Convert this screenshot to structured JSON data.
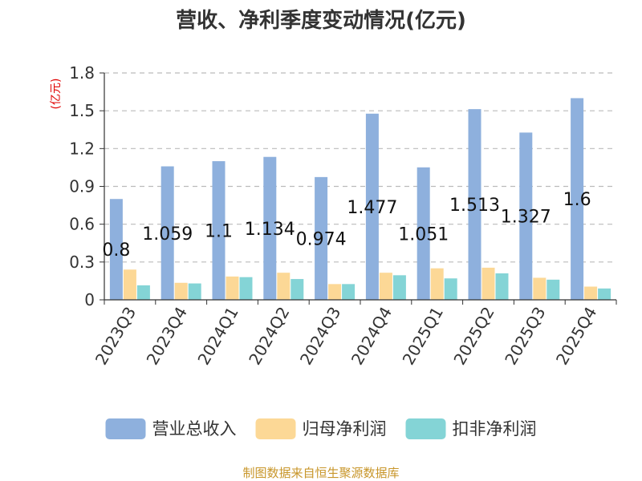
{
  "chart_data": {
    "type": "bar",
    "title": "营收、净利季度变动情况(亿元)",
    "ylabel": "(亿元)",
    "ylim": [
      0,
      1.8
    ],
    "yticks": [
      0,
      0.3,
      0.6,
      0.9,
      1.2,
      1.5,
      1.8
    ],
    "ytick_labels": [
      "0",
      "0.3",
      "0.6",
      "0.9",
      "1.2",
      "1.5",
      "1.8"
    ],
    "grid": true,
    "legend_position": "bottom",
    "categories": [
      "2023Q3",
      "2023Q4",
      "2024Q1",
      "2024Q2",
      "2024Q3",
      "2024Q4",
      "2025Q1",
      "2025Q2",
      "2025Q3",
      "2025Q4"
    ],
    "series": [
      {
        "name": "营业总收入",
        "color": "#8eb0dd",
        "values": [
          0.8,
          1.059,
          1.1,
          1.134,
          0.974,
          1.477,
          1.051,
          1.513,
          1.327,
          1.6
        ],
        "data_labels": [
          "0.8",
          "1.059",
          "1.1",
          "1.134",
          "0.974",
          "1.477",
          "1.051",
          "1.513",
          "1.327",
          "1.6"
        ]
      },
      {
        "name": "归母净利润",
        "color": "#fcd896",
        "values": [
          0.24,
          0.135,
          0.185,
          0.215,
          0.125,
          0.215,
          0.25,
          0.255,
          0.175,
          0.105
        ]
      },
      {
        "name": "扣非净利润",
        "color": "#84d4d6",
        "values": [
          0.115,
          0.13,
          0.18,
          0.165,
          0.125,
          0.195,
          0.17,
          0.21,
          0.16,
          0.09
        ]
      }
    ]
  },
  "source": "制图数据来自恒生聚源数据库"
}
